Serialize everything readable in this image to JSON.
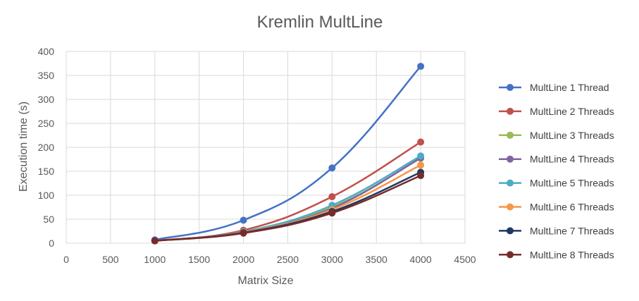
{
  "chart_data": {
    "type": "scatter",
    "title": "Kremlin MultLine",
    "xlabel": "Matrix Size",
    "ylabel": "Execution time (s)",
    "xlim": [
      0,
      4500
    ],
    "ylim": [
      0,
      400
    ],
    "xticks": [
      0,
      500,
      1000,
      1500,
      2000,
      2500,
      3000,
      3500,
      4000,
      4500
    ],
    "yticks": [
      0,
      50,
      100,
      150,
      200,
      250,
      300,
      350,
      400
    ],
    "grid": true,
    "smooth_lines": true,
    "legend_position": "right",
    "x": [
      1000,
      2000,
      3000,
      4000
    ],
    "series": [
      {
        "name": "MultLine 1 Thread",
        "color": "#4472C4",
        "values": [
          7,
          48,
          157,
          369
        ]
      },
      {
        "name": "MultLine 2 Threads",
        "color": "#C0504D",
        "values": [
          5,
          27,
          97,
          211
        ]
      },
      {
        "name": "MultLine 3 Threads",
        "color": "#9BBB59",
        "values": [
          5,
          24,
          75,
          177
        ]
      },
      {
        "name": "MultLine 4 Threads",
        "color": "#8064A2",
        "values": [
          5,
          24,
          73,
          178
        ]
      },
      {
        "name": "MultLine 5 Threads",
        "color": "#4BACC6",
        "values": [
          5,
          24,
          79,
          182
        ]
      },
      {
        "name": "MultLine 6 Threads",
        "color": "#F79646",
        "values": [
          5,
          23,
          70,
          163
        ]
      },
      {
        "name": "MultLine 7 Threads",
        "color": "#1F3864",
        "values": [
          5,
          22,
          66,
          148
        ]
      },
      {
        "name": "MultLine 8 Threads",
        "color": "#772C2A",
        "values": [
          5,
          21,
          63,
          141
        ]
      }
    ]
  }
}
